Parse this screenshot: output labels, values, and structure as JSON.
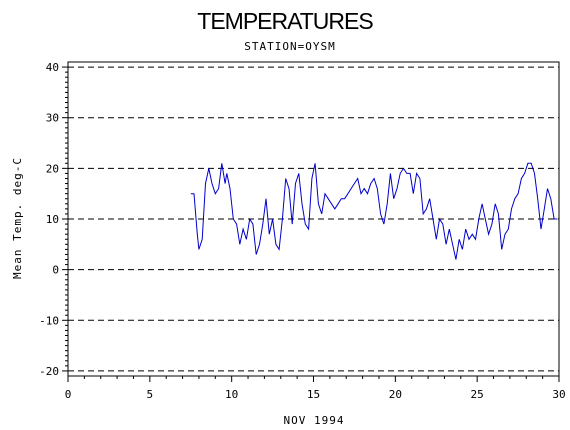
{
  "chart_data": {
    "type": "line",
    "title": "TEMPERATURES",
    "subtitle": "STATION=OYSM",
    "xlabel": "NOV 1994",
    "ylabel": "Mean Temp. deg-C",
    "xlim": [
      0,
      30
    ],
    "ylim": [
      -21,
      41
    ],
    "x_ticks": [
      0,
      5,
      10,
      15,
      20,
      25,
      30
    ],
    "y_ticks": [
      -20,
      -10,
      0,
      10,
      20,
      30,
      40
    ],
    "x_tick_labels": [
      "0",
      "5",
      "10",
      "15",
      "20",
      "25",
      "30"
    ],
    "y_tick_labels": [
      "-20",
      "-10",
      "0",
      "10",
      "20",
      "30",
      "40"
    ],
    "gridlines_y": [
      -20,
      -10,
      0,
      10,
      20,
      30,
      40
    ],
    "grid": "horizontal dashed",
    "line_color": "#0000cc",
    "series": [
      {
        "x": [
          7.5,
          7.7,
          7.9,
          8.0,
          8.2,
          8.4,
          8.6,
          8.8,
          9.0,
          9.2,
          9.4,
          9.6,
          9.7,
          9.9,
          10.1,
          10.3,
          10.5,
          10.7,
          10.9,
          11.1,
          11.3,
          11.5,
          11.7,
          11.9,
          12.1,
          12.3,
          12.5,
          12.7,
          12.9,
          13.1,
          13.3,
          13.5,
          13.7,
          13.9,
          14.1,
          14.3,
          14.5,
          14.7,
          14.9,
          15.1,
          15.3,
          15.5,
          15.7,
          15.9,
          16.1,
          16.3,
          16.5,
          16.7,
          16.9,
          17.1,
          17.3,
          17.5,
          17.7,
          17.9,
          18.1,
          18.3,
          18.5,
          18.7,
          18.9,
          19.1,
          19.3,
          19.5,
          19.7,
          19.9,
          20.1,
          20.3,
          20.5,
          20.7,
          20.9,
          21.1,
          21.3,
          21.5,
          21.7,
          21.9,
          22.1,
          22.3,
          22.5,
          22.7,
          22.9,
          23.1,
          23.3,
          23.5,
          23.7,
          23.9,
          24.1,
          24.3,
          24.5,
          24.7,
          24.9,
          25.1,
          25.3,
          25.5,
          25.7,
          25.9,
          26.1,
          26.3,
          26.5,
          26.7,
          26.9,
          27.1,
          27.3,
          27.5,
          27.7,
          27.9,
          28.1,
          28.3,
          28.5,
          28.7,
          28.9,
          29.1,
          29.3,
          29.5,
          29.7,
          29.9
        ],
        "y": [
          15,
          15,
          7,
          4,
          6,
          17,
          20,
          17,
          15,
          16,
          21,
          17,
          19,
          16,
          10,
          9,
          5,
          8,
          6,
          10,
          9,
          3,
          5,
          9,
          14,
          7,
          10,
          5,
          4,
          10,
          18,
          16,
          9,
          17,
          19,
          13,
          9,
          8,
          18,
          21,
          13,
          11,
          15,
          14,
          13,
          12,
          13,
          14,
          14,
          15,
          16,
          17,
          18,
          15,
          16,
          15,
          17,
          18,
          16,
          11,
          9,
          13,
          19,
          14,
          16,
          19,
          20,
          19,
          19,
          15,
          19,
          18,
          11,
          12,
          14,
          10,
          6,
          10,
          9,
          5,
          8,
          5,
          2,
          6,
          4,
          8,
          6,
          7,
          6,
          10,
          13,
          10,
          7,
          9,
          13,
          11,
          4,
          7,
          8,
          12,
          14,
          15,
          18,
          19,
          21,
          21,
          19,
          14,
          8,
          12,
          16,
          14,
          10,
          10
        ]
      }
    ]
  }
}
